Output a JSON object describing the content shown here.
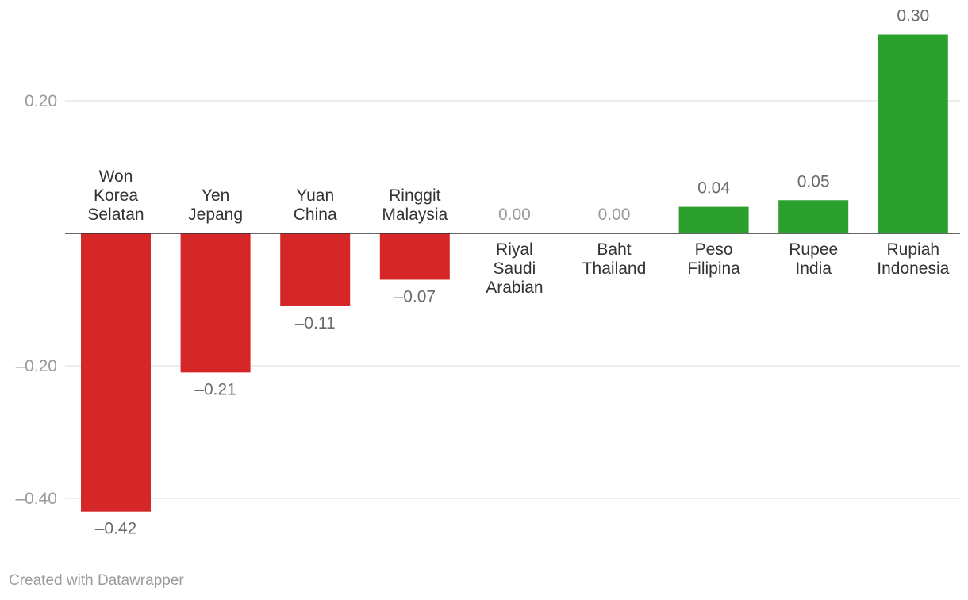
{
  "chart_data": {
    "type": "bar",
    "categories": [
      [
        "Won",
        "Korea",
        "Selatan"
      ],
      [
        "Yen",
        "Jepang"
      ],
      [
        "Yuan",
        "China"
      ],
      [
        "Ringgit",
        "Malaysia"
      ],
      [
        "Riyal",
        "Saudi",
        "Arabian"
      ],
      [
        "Baht",
        "Thailand"
      ],
      [
        "Peso",
        "Filipina"
      ],
      [
        "Rupee",
        "India"
      ],
      [
        "Rupiah",
        "Indonesia"
      ]
    ],
    "values": [
      -0.42,
      -0.21,
      -0.11,
      -0.07,
      0.0,
      0.0,
      0.04,
      0.05,
      0.3
    ],
    "value_labels": [
      "–0.42",
      "–0.21",
      "–0.11",
      "–0.07",
      "0.00",
      "0.00",
      "0.04",
      "0.05",
      "0.30"
    ],
    "y_ticks": [
      0.2,
      -0.2,
      -0.4
    ],
    "y_tick_labels": [
      "0.20",
      "–0.20",
      "–0.40"
    ],
    "ylim": [
      -0.4,
      0.3
    ],
    "grid": true,
    "colors": {
      "negative": "#d62728",
      "positive": "#2ca02c"
    }
  },
  "footer": {
    "credit": "Created with Datawrapper"
  }
}
